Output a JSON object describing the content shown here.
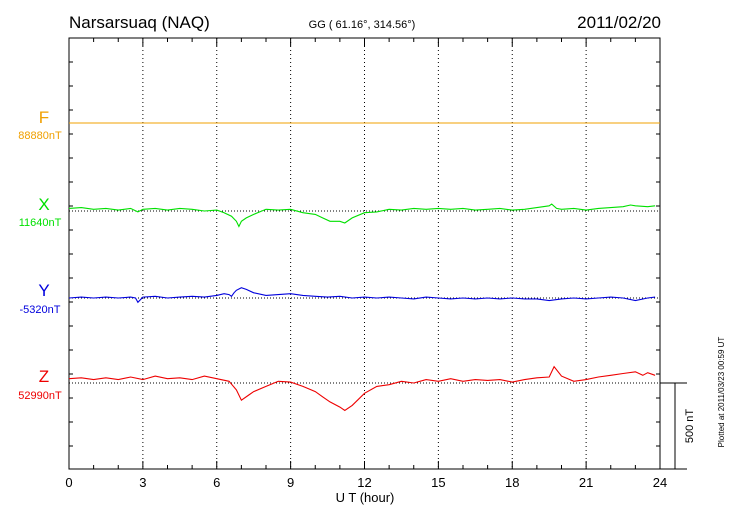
{
  "chart_data": {
    "type": "line",
    "title": "Narsarsuaq (NAQ)",
    "subtitle": "GG ( 61.16°, 314.56°)",
    "date": "2011/02/20",
    "xlabel": "U T (hour)",
    "xlim": [
      0,
      24
    ],
    "xticks": [
      "0",
      "3",
      "6",
      "9",
      "12",
      "15",
      "18",
      "21",
      "24"
    ],
    "scale_label": "500 nT",
    "footer": "Plotted at 2011/03/23 00:59 UT",
    "grid": true,
    "series": [
      {
        "name": "F",
        "baseline_label": "88880nT",
        "color": "#f0a000",
        "x": [
          0,
          24
        ],
        "y": [
          0,
          0
        ]
      },
      {
        "name": "X",
        "baseline_label": "11640nT",
        "color": "#00e000",
        "x": [
          0,
          0.5,
          1,
          1.5,
          2,
          2.5,
          2.8,
          3,
          3.5,
          4,
          4.5,
          5,
          5.5,
          6,
          6.3,
          6.6,
          6.8,
          6.9,
          7,
          7.2,
          7.5,
          8,
          8.5,
          9,
          9.5,
          10,
          10.3,
          10.6,
          11,
          11.2,
          11.5,
          12,
          12.5,
          13,
          13.5,
          14,
          14.5,
          15,
          15.5,
          16,
          16.5,
          17,
          17.5,
          18,
          18.5,
          19,
          19.5,
          19.6,
          19.8,
          20,
          20.5,
          21,
          21.5,
          22,
          22.5,
          22.8,
          23,
          23.5,
          23.8
        ],
        "y": [
          15,
          20,
          10,
          15,
          5,
          15,
          -5,
          10,
          15,
          5,
          15,
          10,
          0,
          5,
          -10,
          -30,
          -60,
          -90,
          -60,
          -40,
          -20,
          10,
          5,
          10,
          -10,
          -20,
          -40,
          -60,
          -60,
          -70,
          -40,
          -10,
          -5,
          10,
          5,
          15,
          10,
          15,
          10,
          15,
          5,
          10,
          15,
          5,
          10,
          20,
          30,
          40,
          15,
          10,
          15,
          5,
          15,
          20,
          25,
          35,
          30,
          25,
          30
        ]
      },
      {
        "name": "Y",
        "baseline_label": "-5320nT",
        "color": "#0000dd",
        "x": [
          0,
          0.5,
          1,
          1.5,
          2,
          2.5,
          2.7,
          2.8,
          3,
          3.5,
          4,
          4.5,
          5,
          5.5,
          6,
          6.3,
          6.5,
          6.6,
          6.7,
          6.8,
          7,
          7.2,
          7.5,
          8,
          8.5,
          9,
          9.5,
          10,
          10.5,
          11,
          11.5,
          12,
          12.5,
          13,
          13.5,
          14,
          14.5,
          15,
          15.5,
          16,
          16.5,
          17,
          17.5,
          18,
          18.5,
          19,
          19.5,
          20,
          20.5,
          21,
          21.5,
          22,
          22.5,
          23,
          23.5,
          23.8
        ],
        "y": [
          0,
          5,
          0,
          5,
          0,
          5,
          0,
          -25,
          5,
          10,
          0,
          5,
          10,
          5,
          15,
          25,
          20,
          10,
          30,
          45,
          60,
          50,
          30,
          15,
          20,
          25,
          15,
          10,
          5,
          10,
          0,
          5,
          0,
          5,
          0,
          -5,
          5,
          0,
          -5,
          0,
          -5,
          0,
          -5,
          0,
          -5,
          -5,
          -15,
          -5,
          0,
          -5,
          0,
          5,
          0,
          -15,
          0,
          5
        ]
      },
      {
        "name": "Z",
        "baseline_label": "52990nT",
        "color": "#ee0000",
        "x": [
          0,
          0.5,
          1,
          1.5,
          2,
          2.5,
          3,
          3.5,
          4,
          4.5,
          5,
          5.5,
          6,
          6.5,
          6.8,
          7,
          7.3,
          7.5,
          8,
          8.5,
          9,
          9.5,
          10,
          10.3,
          10.6,
          11,
          11.2,
          11.5,
          12,
          12.5,
          13,
          13.5,
          14,
          14.5,
          15,
          15.5,
          16,
          16.5,
          17,
          17.5,
          18,
          18.5,
          19,
          19.5,
          19.7,
          20,
          20.5,
          21,
          21.5,
          22,
          22.5,
          23,
          23.3,
          23.5,
          23.8
        ],
        "y": [
          25,
          30,
          20,
          30,
          20,
          35,
          20,
          40,
          25,
          30,
          20,
          40,
          25,
          10,
          -40,
          -100,
          -70,
          -50,
          -20,
          10,
          5,
          -20,
          -50,
          -80,
          -110,
          -140,
          -160,
          -130,
          -60,
          -20,
          -10,
          10,
          0,
          20,
          10,
          25,
          10,
          20,
          15,
          20,
          5,
          20,
          30,
          35,
          95,
          40,
          10,
          20,
          35,
          45,
          55,
          65,
          45,
          60,
          45
        ]
      }
    ]
  }
}
